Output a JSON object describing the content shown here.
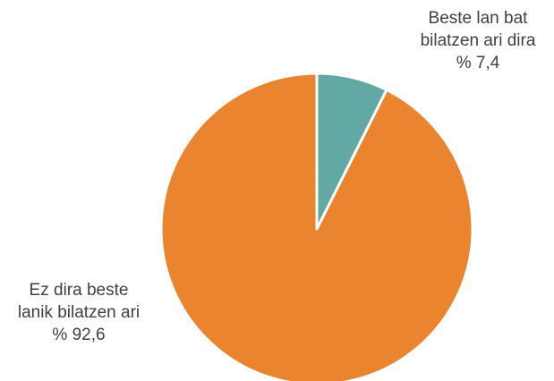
{
  "chart_data": {
    "type": "pie",
    "title": "",
    "slices": [
      {
        "label_lines": [
          "Beste lan bat",
          "bilatzen ari dira"
        ],
        "value_text": "% 7,4",
        "value": 7.4,
        "color": "#62a9a6"
      },
      {
        "label_lines": [
          "Ez dira beste",
          "lanik bilatzen ari"
        ],
        "value_text": "% 92,6",
        "value": 92.6,
        "color": "#ea842e"
      }
    ],
    "start_angle_deg": 0,
    "direction": "clockwise",
    "separator_color": "#ffffff"
  }
}
